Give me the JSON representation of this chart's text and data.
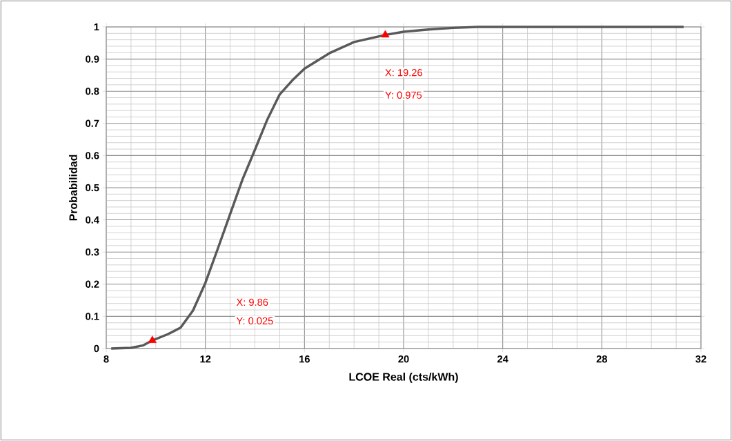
{
  "chart_data": {
    "type": "line",
    "xlabel": "LCOE Real (cts/kWh)",
    "ylabel": "Probabilidad",
    "series": [
      {
        "color": "#595959",
        "marker": "none",
        "x": [
          8.2,
          9.0,
          9.5,
          9.86,
          10.5,
          11.0,
          11.5,
          12.0,
          12.5,
          13.0,
          13.5,
          14.0,
          14.5,
          15.0,
          15.5,
          16.0,
          17.0,
          18.0,
          19.26,
          20.0,
          21.0,
          22.0,
          23.0,
          31.3
        ],
        "values": [
          0,
          0.002,
          0.01,
          0.025,
          0.045,
          0.065,
          0.118,
          0.204,
          0.31,
          0.418,
          0.526,
          0.618,
          0.712,
          0.79,
          0.833,
          0.87,
          0.918,
          0.953,
          0.975,
          0.985,
          0.992,
          0.997,
          1,
          1
        ]
      },
      {
        "type": "scatter",
        "color": "#ff0000",
        "marker": "triangle",
        "x": [
          9.86,
          19.26
        ],
        "values": [
          0.025,
          0.975
        ]
      }
    ],
    "annotations": [
      "X: 9.86",
      "Y: 0.025",
      "X: 19.26",
      "Y: 0.975"
    ],
    "xlim": [
      8,
      32
    ],
    "xticks": [
      8,
      12,
      16,
      20,
      24,
      28,
      32
    ],
    "ylim": [
      0,
      1
    ],
    "yticks": [
      0,
      0.1,
      0.2,
      0.3,
      0.4,
      0.5,
      0.6,
      0.7,
      0.8,
      0.9,
      1
    ],
    "grid": true
  }
}
